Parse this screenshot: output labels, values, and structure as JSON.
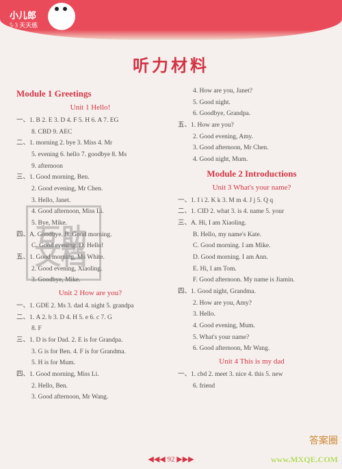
{
  "brand": {
    "name": "小儿郎",
    "sub": "5·3 天天练"
  },
  "mainTitle": "听力材料",
  "left": {
    "module": "Module 1   Greetings",
    "unit1": "Unit 1   Hello!",
    "u1": [
      "一、1. B   2. E   3. D   4. F   5. H   6. A   7. EG",
      "8. CBD   9. AEC",
      "二、1. morning   2. bye   3. Miss   4. Mr",
      "5. evening   6. hello   7. goodbye   8. Ms",
      "9. afternoon",
      "三、1. Good morning, Ben.",
      "2. Good evening, Mr Chen.",
      "3. Hello, Janet.",
      "4. Good afternoon, Miss Li.",
      "5. Bye, Mike.",
      "四、A. Goodbye.   B. Good morning.",
      "C. Good evening.   D. Hello!",
      "五、1. Good morning, Ms White.",
      "2. Good evening, Xiaoling.",
      "3. Goodbye, Mike."
    ],
    "unit2": "Unit 2   How are you?",
    "u2": [
      "一、1. GDE   2. Ms   3. dad   4. night   5. grandpa",
      "二、1. A   2. b   3. D   4. H   5. e   6. c   7. G",
      "8. F",
      "三、1. D is for Dad.   2. E is for Grandpa.",
      "3. G is for Ben.   4. F is for Grandma.",
      "5. H is for Mum.",
      "四、1. Good morning, Miss Li.",
      "2. Hello, Ben.",
      "3. Good afternoon, Mr Wang."
    ]
  },
  "right": {
    "u2cont": [
      "4. How are you, Janet?",
      "5. Good night.",
      "6. Goodbye, Grandpa.",
      "五、1. How are you?",
      "2. Good evening, Amy.",
      "3. Good afternoon, Mr Chen.",
      "4. Good night, Mum."
    ],
    "module": "Module 2   Introductions",
    "unit3": "Unit 3   What's your name?",
    "u3": [
      "一、1. I  i   2. K  k   3. M  m   4. J  j   5. Q  q",
      "二、1. CID   2. what   3. is   4. name   5. your",
      "三、A. Hi, I am Xiaoling.",
      "B. Hello, my name's Kate.",
      "C. Good morning. I am Mike.",
      "D. Good morning. I am Ann.",
      "E. Hi, I am Tom.",
      "F. Good afternoon. My name is Jiamin.",
      "四、1. Good night, Grandma.",
      "2. How are you, Amy?",
      "3. Hello.",
      "4. Good evening, Mum.",
      "5. What's your name?",
      "6. Good afternoon, Mr Wang."
    ],
    "unit4": "Unit 4   This is my dad",
    "u4": [
      "一、1. cbd   2. meet   3. nice   4. this   5. new",
      "6. friend"
    ]
  },
  "pageNum": "92",
  "wmRight": "答案圈",
  "wmUrl": "www.MXQE.COM"
}
